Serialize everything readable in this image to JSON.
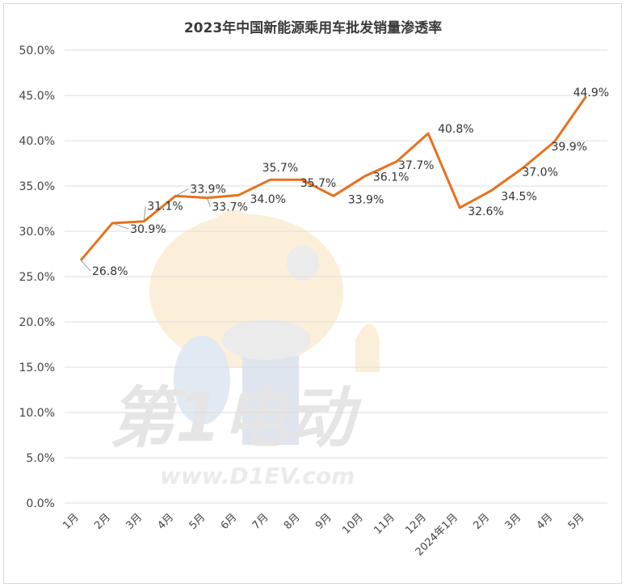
{
  "chart_data": {
    "type": "line",
    "title": "2023年中国新能源乘用车批发销量渗透率",
    "categories": [
      "1月",
      "2月",
      "3月",
      "4月",
      "5月",
      "6月",
      "7月",
      "8月",
      "9月",
      "10月",
      "11月",
      "12月",
      "2024年1月",
      "2月",
      "3月",
      "4月",
      "5月"
    ],
    "values": [
      26.8,
      30.9,
      31.1,
      33.9,
      33.7,
      34.0,
      35.7,
      35.7,
      33.9,
      36.1,
      37.7,
      40.8,
      32.6,
      34.5,
      37.0,
      39.9,
      44.9
    ],
    "data_labels": [
      "26.8%",
      "30.9%",
      "31.1%",
      "33.9%",
      "33.7%",
      "34.0%",
      "35.7%",
      "35.7%",
      "33.9%",
      "36.1%",
      "37.7%",
      "40.8%",
      "32.6%",
      "34.5%",
      "37.0%",
      "39.9%",
      "44.9%"
    ],
    "y_ticks": [
      "0.0%",
      "5.0%",
      "10.0%",
      "15.0%",
      "20.0%",
      "25.0%",
      "30.0%",
      "35.0%",
      "40.0%",
      "45.0%",
      "50.0%"
    ],
    "ylim": [
      0,
      50
    ],
    "grid": true,
    "line_color": "#e8711c",
    "watermark": {
      "text_main": "第1电动",
      "url": "www.D1EV.com"
    }
  }
}
